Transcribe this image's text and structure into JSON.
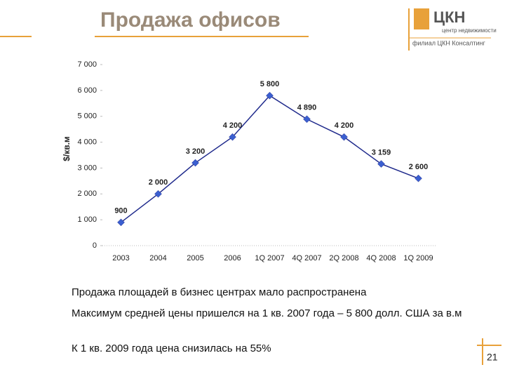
{
  "slide": {
    "logo": {
      "name": "ЦКН",
      "line1": "центр недвижимости",
      "line2": "филиал ЦКН Консалтинг"
    },
    "bullets": [
      "Продажа площадей в бизнес центрах мало распространена",
      "Максимум средней цены пришелся на 1 кв. 2007 года – 5 800 долл. США за в.м",
      "К 1 кв. 2009 года цена снизилась на 55%"
    ],
    "page_number": "21"
  },
  "chart_data": {
    "type": "line",
    "title": "Продажа офисов",
    "ylabel": "$/кв.м",
    "categories": [
      "2003",
      "2004",
      "2005",
      "2006",
      "1Q 2007",
      "4Q 2007",
      "2Q 2008",
      "4Q 2008",
      "1Q 2009"
    ],
    "values": [
      900,
      2000,
      3200,
      4200,
      5800,
      4890,
      4200,
      3159,
      2600
    ],
    "value_labels": [
      "900",
      "2 000",
      "3 200",
      "4 200",
      "5 800",
      "4 890",
      "4 200",
      "3 159",
      "2 600"
    ],
    "color": "#1f2a8c",
    "marker_color": "#3b5fd0",
    "ylim": [
      0,
      7000
    ],
    "yticks": [
      0,
      {
        "value": 1000,
        "label": "1 000"
      },
      {
        "value": 2000,
        "label": "2 000"
      },
      {
        "value": 3000,
        "label": "3 000"
      },
      {
        "value": 4000,
        "label": "4 000"
      },
      {
        "value": 5000,
        "label": "5 000"
      },
      {
        "value": 6000,
        "label": "6 000"
      },
      {
        "value": 7000,
        "label": "7 000"
      }
    ],
    "grid": false
  }
}
